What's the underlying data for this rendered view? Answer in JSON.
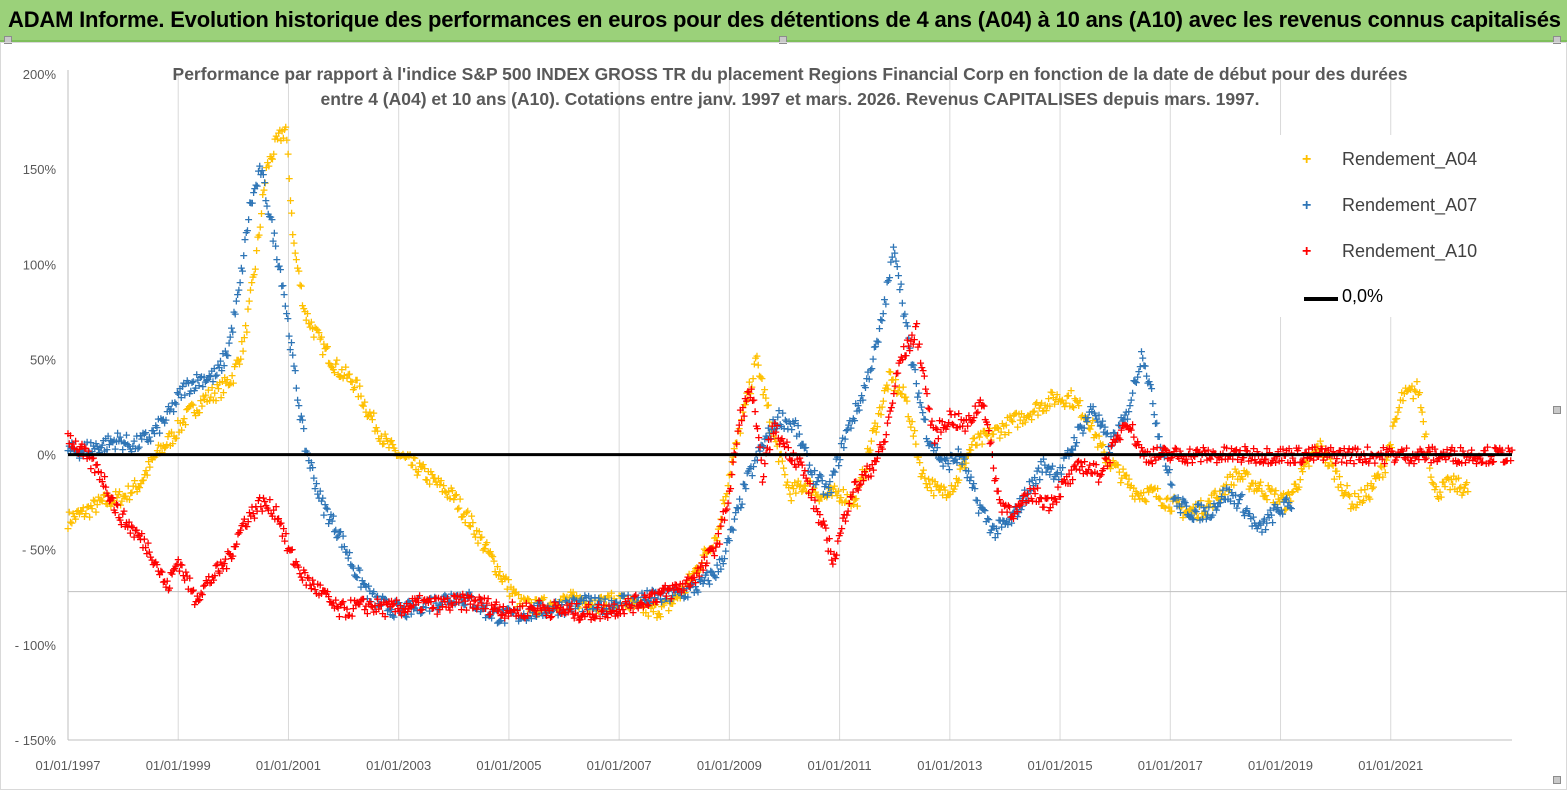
{
  "banner": {
    "title": "ADAM Informe. Evolution historique des performances en euros pour des détentions de 4 ans (A04) à 10 ans (A10) avec les revenus connus capitalisés"
  },
  "chart_data": {
    "type": "scatter",
    "title_line1": "Performance par rapport à l'indice S&P 500 INDEX GROSS TR  du placement Regions Financial Corp en fonction de la date de début pour des durées",
    "title_line2": "entre 4 (A04) et 10 ans (A10). Cotations entre janv. 1997 et mars. 2026. Revenus CAPITALISES depuis mars. 1997.",
    "x_ticks": [
      "01/01/1997",
      "01/01/1999",
      "01/01/2001",
      "01/01/2003",
      "01/01/2005",
      "01/01/2007",
      "01/01/2009",
      "01/01/2011",
      "01/01/2013",
      "01/01/2015",
      "01/01/2017",
      "01/01/2019",
      "01/01/2021"
    ],
    "x_tick_years": [
      1997,
      1999,
      2001,
      2003,
      2005,
      2007,
      2009,
      2011,
      2013,
      2015,
      2017,
      2019,
      2021
    ],
    "y_ticks": [
      "200%",
      "150%",
      "100%",
      "50%",
      "0%",
      "- 50%",
      "- 100%",
      "- 150%"
    ],
    "y_tick_values": [
      200,
      150,
      100,
      50,
      0,
      -50,
      -100,
      -150
    ],
    "xlim": [
      1997.0,
      2023.2
    ],
    "ylim": [
      -150,
      200
    ],
    "extra_hline": -72,
    "legend_position": "top-right",
    "series": [
      {
        "name": "Rendement_A04",
        "color": "#ffc000",
        "x": [
          1997.0,
          1997.3,
          1997.6,
          1998.0,
          1998.3,
          1998.6,
          1998.9,
          1999.2,
          1999.5,
          1999.8,
          2000.0,
          2000.2,
          2000.4,
          2000.6,
          2000.8,
          2000.95,
          2001.1,
          2001.3,
          2001.6,
          2001.9,
          2002.2,
          2002.5,
          2002.8,
          2003.1,
          2003.4,
          2003.7,
          2004.0,
          2004.3,
          2004.6,
          2004.9,
          2005.2,
          2005.5,
          2005.8,
          2006.1,
          2006.4,
          2006.7,
          2007.0,
          2007.3,
          2007.6,
          2007.9,
          2008.2,
          2008.5,
          2008.8,
          2009.0,
          2009.2,
          2009.5,
          2009.8,
          2010.1,
          2010.4,
          2010.7,
          2011.0,
          2011.3,
          2011.6,
          2011.9,
          2012.2,
          2012.5,
          2012.8,
          2013.1,
          2013.4,
          2013.7,
          2014.0,
          2014.3,
          2014.6,
          2014.9,
          2015.2,
          2015.5,
          2015.8,
          2016.1,
          2016.4,
          2016.7,
          2017.0,
          2017.3,
          2017.6,
          2017.9,
          2018.2,
          2018.5,
          2018.8,
          2019.1,
          2019.4,
          2019.7,
          2020.0,
          2020.3,
          2020.6,
          2020.9,
          2021.2,
          2021.5,
          2021.8,
          2022.1,
          2022.4
        ],
        "values": [
          -34,
          -30,
          -25,
          -22,
          -15,
          0,
          10,
          22,
          30,
          35,
          42,
          60,
          100,
          150,
          165,
          172,
          110,
          75,
          58,
          45,
          38,
          20,
          5,
          -2,
          -8,
          -15,
          -22,
          -35,
          -50,
          -65,
          -78,
          -80,
          -78,
          -76,
          -77,
          -78,
          -76,
          -80,
          -82,
          -79,
          -70,
          -55,
          -40,
          -10,
          15,
          50,
          10,
          -20,
          -15,
          -22,
          -20,
          -25,
          10,
          40,
          30,
          -10,
          -20,
          -15,
          5,
          10,
          15,
          20,
          25,
          30,
          30,
          20,
          0,
          -10,
          -20,
          -20,
          -25,
          -30,
          -28,
          -20,
          -10,
          -15,
          -20,
          -25,
          -10,
          5,
          -10,
          -25,
          -20,
          -5,
          30,
          35,
          -20,
          -15,
          -18
        ]
      },
      {
        "name": "Rendement_A07",
        "color": "#2e75b6",
        "x": [
          1997.0,
          1997.3,
          1997.6,
          1997.9,
          1998.2,
          1998.5,
          1998.8,
          1999.1,
          1999.4,
          1999.7,
          1999.9,
          2000.1,
          2000.3,
          2000.5,
          2000.7,
          2000.9,
          2001.1,
          2001.3,
          2001.6,
          2001.9,
          2002.2,
          2002.5,
          2002.8,
          2003.1,
          2003.4,
          2003.7,
          2004.0,
          2004.3,
          2004.6,
          2004.9,
          2005.2,
          2005.5,
          2005.8,
          2006.1,
          2006.4,
          2006.7,
          2007.0,
          2007.3,
          2007.6,
          2007.9,
          2008.2,
          2008.5,
          2008.8,
          2009.0,
          2009.3,
          2009.6,
          2009.9,
          2010.2,
          2010.5,
          2010.8,
          2011.1,
          2011.4,
          2011.7,
          2012.0,
          2012.3,
          2012.6,
          2012.9,
          2013.2,
          2013.5,
          2013.8,
          2014.1,
          2014.4,
          2014.7,
          2015.0,
          2015.3,
          2015.6,
          2015.9,
          2016.2,
          2016.5,
          2016.8,
          2017.1,
          2017.4,
          2017.7,
          2018.0,
          2018.3,
          2018.6,
          2018.9,
          2019.2
        ],
        "values": [
          2,
          3,
          5,
          8,
          5,
          10,
          20,
          35,
          40,
          42,
          55,
          85,
          130,
          150,
          120,
          90,
          45,
          5,
          -25,
          -40,
          -60,
          -75,
          -80,
          -82,
          -79,
          -77,
          -74,
          -76,
          -82,
          -85,
          -84,
          -82,
          -80,
          -79,
          -78,
          -80,
          -77,
          -76,
          -75,
          -74,
          -72,
          -68,
          -60,
          -45,
          -15,
          5,
          20,
          15,
          -10,
          -20,
          10,
          30,
          60,
          110,
          50,
          10,
          -5,
          0,
          -25,
          -40,
          -35,
          -20,
          -5,
          -10,
          10,
          25,
          5,
          20,
          55,
          10,
          -25,
          -30,
          -30,
          -20,
          -25,
          -40,
          -30,
          -25
        ]
      },
      {
        "name": "Rendement_A10",
        "color": "#ff0000",
        "x": [
          1997.0,
          1997.3,
          1997.6,
          1997.9,
          1998.2,
          1998.5,
          1998.8,
          1999.0,
          1999.3,
          1999.6,
          1999.9,
          2000.2,
          2000.5,
          2000.8,
          2001.0,
          2001.3,
          2001.6,
          2001.9,
          2002.2,
          2002.5,
          2002.8,
          2003.1,
          2003.4,
          2003.7,
          2004.0,
          2004.3,
          2004.6,
          2004.9,
          2005.2,
          2005.5,
          2005.8,
          2006.1,
          2006.4,
          2006.7,
          2007.0,
          2007.3,
          2007.6,
          2007.9,
          2008.2,
          2008.5,
          2008.8,
          2009.0,
          2009.2,
          2009.4,
          2009.6,
          2009.8,
          2010.0,
          2010.3,
          2010.6,
          2010.9,
          2011.2,
          2011.5,
          2011.8,
          2012.1,
          2012.4,
          2012.7,
          2013.0,
          2013.3,
          2013.6,
          2013.9,
          2014.2,
          2014.5,
          2014.8,
          2015.1,
          2015.4,
          2015.7,
          2016.0,
          2016.2,
          2016.5,
          2017.0,
          2018.0,
          2019.0,
          2020.0,
          2021.0,
          2022.0,
          2023.2
        ],
        "values": [
          10,
          0,
          -10,
          -30,
          -40,
          -50,
          -70,
          -55,
          -75,
          -65,
          -55,
          -35,
          -25,
          -30,
          -50,
          -65,
          -72,
          -82,
          -80,
          -79,
          -81,
          -80,
          -78,
          -79,
          -78,
          -77,
          -79,
          -81,
          -82,
          -80,
          -81,
          -82,
          -83,
          -82,
          -80,
          -78,
          -74,
          -72,
          -68,
          -60,
          -45,
          -20,
          20,
          35,
          -10,
          15,
          5,
          -5,
          -30,
          -55,
          -20,
          -10,
          5,
          50,
          65,
          10,
          20,
          15,
          30,
          -25,
          -30,
          -20,
          -25,
          -15,
          -5,
          -10,
          5,
          20,
          0,
          0,
          0,
          0,
          0,
          0,
          0,
          0
        ]
      }
    ],
    "zero_line_label": "0,0%"
  }
}
